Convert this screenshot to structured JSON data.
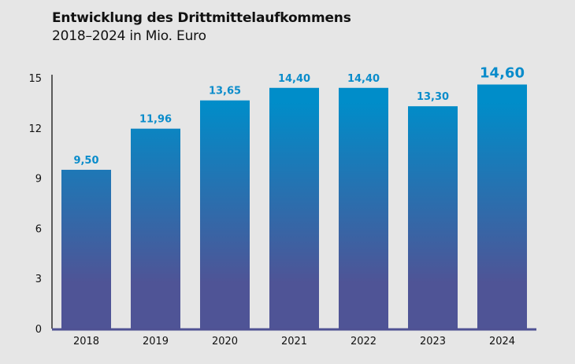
{
  "chart_data": {
    "type": "bar",
    "title": "Entwicklung des Drittmittelaufkommens",
    "subtitle": "2018–2024 in Mio. Euro",
    "categories": [
      "2018",
      "2019",
      "2020",
      "2021",
      "2022",
      "2023",
      "2024"
    ],
    "values": [
      9.5,
      11.96,
      13.65,
      14.4,
      14.4,
      13.3,
      14.6
    ],
    "data_labels": [
      "9,50",
      "11,96",
      "13,65",
      "14,40",
      "14,40",
      "13,30",
      "14,60"
    ],
    "highlight_index": 6,
    "ylim": [
      0,
      15
    ],
    "yticks": [
      0,
      3,
      6,
      9,
      12,
      15
    ],
    "grid": false,
    "colors": {
      "bar_top": "#008dc9",
      "bar_bottom": "#4f5496",
      "label": "#0a8ccb",
      "axis": "#4f5193",
      "background": "#e6e6e6"
    }
  }
}
